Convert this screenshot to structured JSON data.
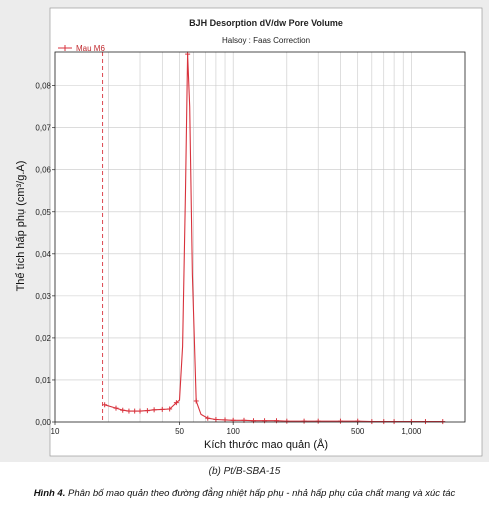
{
  "chart_data": {
    "type": "line",
    "title": "BJH Desorption dV/dw Pore Volume",
    "subtitle": "Halsoy : Faas Correction",
    "xlabel": "Kích thước mao quản (Å)",
    "ylabel": "Thể tích hấp phụ (cm³/g.A)",
    "x_scale": "log",
    "xlim": [
      10,
      2000
    ],
    "ylim": [
      0,
      0.088
    ],
    "x_ticks": [
      {
        "value": 10,
        "label": "10"
      },
      {
        "value": 50,
        "label": "50"
      },
      {
        "value": 100,
        "label": "100"
      },
      {
        "value": 500,
        "label": "500"
      },
      {
        "value": 1000,
        "label": "1,000"
      }
    ],
    "y_ticks": [
      {
        "value": 0,
        "label": "0,00"
      },
      {
        "value": 0.01,
        "label": "0,01"
      },
      {
        "value": 0.02,
        "label": "0,02"
      },
      {
        "value": 0.03,
        "label": "0,03"
      },
      {
        "value": 0.04,
        "label": "0,04"
      },
      {
        "value": 0.05,
        "label": "0,05"
      },
      {
        "value": 0.06,
        "label": "0,06"
      },
      {
        "value": 0.07,
        "label": "0,07"
      },
      {
        "value": 0.08,
        "label": "0,08"
      }
    ],
    "grid": true,
    "legend_position": "top-left",
    "series": [
      {
        "name": "Mau M6",
        "color": "#d8323c",
        "marker": "plus",
        "x": [
          19,
          22,
          24,
          26,
          28,
          30,
          33,
          36,
          40,
          44,
          48,
          50,
          52,
          54,
          55.5,
          57,
          59,
          62,
          66,
          72,
          80,
          90,
          100,
          115,
          130,
          150,
          175,
          200,
          250,
          300,
          400,
          500,
          600,
          700,
          800,
          1000,
          1200,
          1500
        ],
        "y": [
          0.0041,
          0.0033,
          0.0028,
          0.0026,
          0.0026,
          0.0026,
          0.0027,
          0.0029,
          0.003,
          0.0031,
          0.0046,
          0.0052,
          0.018,
          0.055,
          0.0875,
          0.075,
          0.035,
          0.005,
          0.0018,
          0.0009,
          0.0006,
          0.0005,
          0.0004,
          0.0004,
          0.0003,
          0.0003,
          0.0003,
          0.0002,
          0.0002,
          0.0002,
          0.0002,
          0.0002,
          0.0001,
          0.0001,
          0.0001,
          0.0001,
          0.0001,
          0.0001
        ],
        "marked_x": [
          19,
          22,
          24,
          26,
          28,
          30,
          33,
          36,
          40,
          44,
          48,
          55.5,
          62,
          72,
          80,
          90,
          100,
          115,
          130,
          150,
          175,
          200,
          250,
          300,
          400,
          500,
          600,
          700,
          800,
          1000,
          1200,
          1500
        ]
      }
    ],
    "reference_line_x": 18.5
  },
  "captions": {
    "sub": "(b) Pt/B-SBA-15",
    "figure_label": "Hình 4.",
    "figure_text": " Phân bố mao quản theo đường đẳng nhiệt hấp phụ - nhả hấp phụ của chất mang và xúc tác"
  }
}
